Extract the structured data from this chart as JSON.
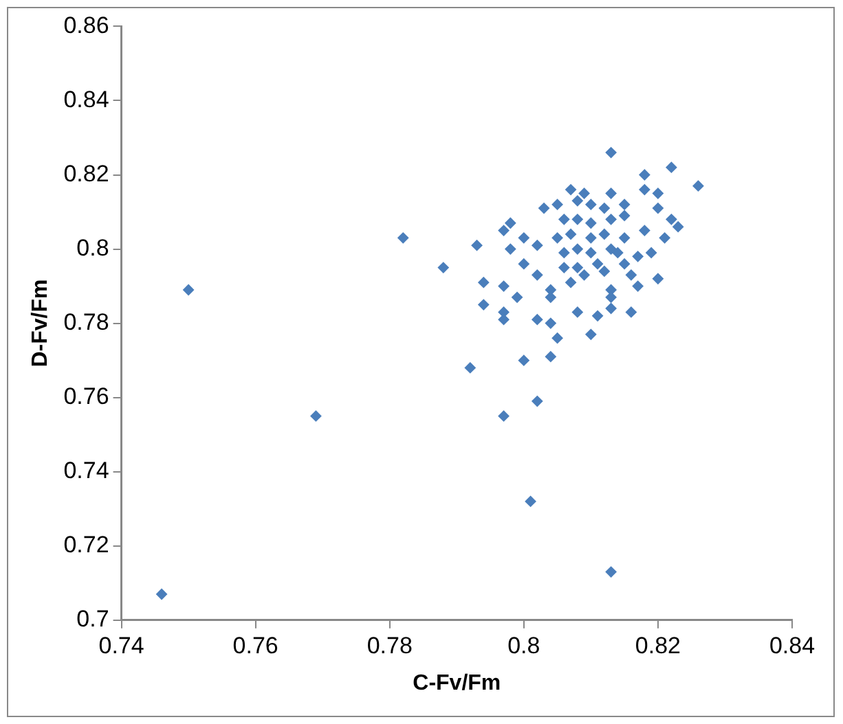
{
  "chart_data": {
    "type": "scatter",
    "xlabel": "C-Fv/Fm",
    "ylabel": "D-Fv/Fm",
    "xlim": [
      0.74,
      0.84
    ],
    "xticks": [
      0.74,
      0.76,
      0.78,
      0.8,
      0.82,
      0.84
    ],
    "ylim": [
      0.7,
      0.86
    ],
    "yticks": [
      0.7,
      0.72,
      0.74,
      0.76,
      0.78,
      0.8,
      0.82,
      0.84,
      0.86
    ],
    "grid": false,
    "legend": false,
    "marker": "diamond",
    "series": [
      {
        "color": "#4a7ebb",
        "x": [
          0.746,
          0.75,
          0.769,
          0.782,
          0.797,
          0.802,
          0.801,
          0.813,
          0.813,
          0.822,
          0.818,
          0.826,
          0.788,
          0.793,
          0.792,
          0.8,
          0.804,
          0.805,
          0.81,
          0.794,
          0.797,
          0.797,
          0.794,
          0.797,
          0.799,
          0.802,
          0.804,
          0.804,
          0.808,
          0.811,
          0.813,
          0.816,
          0.82,
          0.817,
          0.798,
          0.797,
          0.798,
          0.803,
          0.807,
          0.809,
          0.813,
          0.818,
          0.82,
          0.82,
          0.822,
          0.823,
          0.821,
          0.818,
          0.8,
          0.802,
          0.8,
          0.802,
          0.804,
          0.807,
          0.809,
          0.813,
          0.813,
          0.816,
          0.817,
          0.819,
          0.805,
          0.808,
          0.81,
          0.812,
          0.815,
          0.806,
          0.808,
          0.81,
          0.813,
          0.815,
          0.805,
          0.807,
          0.81,
          0.812,
          0.815,
          0.806,
          0.808,
          0.81,
          0.813,
          0.814,
          0.806,
          0.808,
          0.811,
          0.812,
          0.815
        ],
        "values": [
          0.707,
          0.789,
          0.755,
          0.803,
          0.755,
          0.759,
          0.732,
          0.713,
          0.826,
          0.822,
          0.82,
          0.817,
          0.795,
          0.801,
          0.768,
          0.77,
          0.771,
          0.776,
          0.777,
          0.785,
          0.783,
          0.781,
          0.791,
          0.79,
          0.787,
          0.781,
          0.78,
          0.787,
          0.783,
          0.782,
          0.784,
          0.783,
          0.792,
          0.79,
          0.8,
          0.805,
          0.807,
          0.811,
          0.816,
          0.815,
          0.815,
          0.816,
          0.815,
          0.811,
          0.808,
          0.806,
          0.803,
          0.805,
          0.803,
          0.801,
          0.796,
          0.793,
          0.789,
          0.791,
          0.793,
          0.789,
          0.787,
          0.793,
          0.798,
          0.799,
          0.812,
          0.813,
          0.812,
          0.811,
          0.812,
          0.808,
          0.808,
          0.807,
          0.808,
          0.809,
          0.803,
          0.804,
          0.803,
          0.804,
          0.803,
          0.799,
          0.8,
          0.799,
          0.8,
          0.799,
          0.795,
          0.795,
          0.796,
          0.794,
          0.796
        ]
      }
    ]
  }
}
